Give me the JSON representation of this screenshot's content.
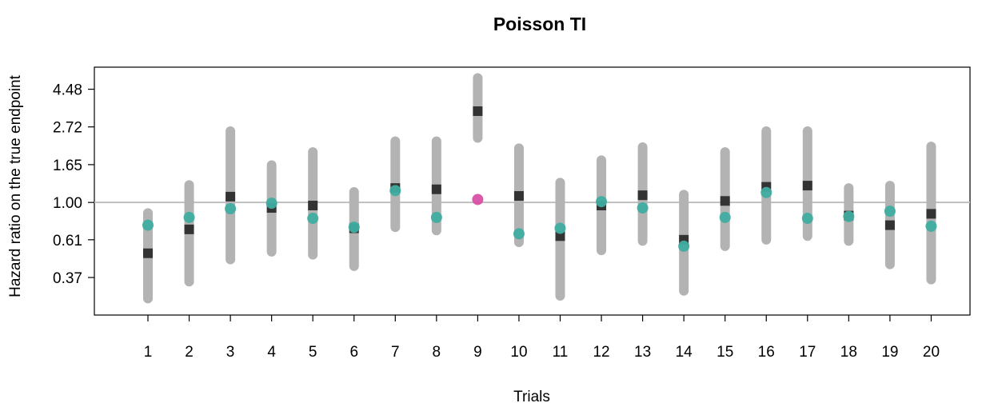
{
  "chart_data": {
    "type": "scatter",
    "title": "Poisson TI",
    "xlabel": "Trials",
    "ylabel": "Hazard ratio on the true endpoint",
    "y_scale": "log",
    "ylim": [
      0.225,
      6.0
    ],
    "y_ticks": [
      "0.37",
      "0.61",
      "1.00",
      "1.65",
      "2.72",
      "4.48"
    ],
    "y_tick_values": [
      0.37,
      0.61,
      1.0,
      1.65,
      2.72,
      4.48
    ],
    "reference_line": 1.0,
    "grid": false,
    "categories": [
      "1",
      "2",
      "3",
      "4",
      "5",
      "6",
      "7",
      "8",
      "9",
      "10",
      "11",
      "12",
      "13",
      "14",
      "15",
      "16",
      "17",
      "18",
      "19",
      "20"
    ],
    "series": [
      {
        "role": "interval",
        "color": "#b3b3b3",
        "lower": [
          0.28,
          0.35,
          0.47,
          0.52,
          0.5,
          0.43,
          0.72,
          0.69,
          2.35,
          0.59,
          0.29,
          0.53,
          0.6,
          0.31,
          0.56,
          0.61,
          0.64,
          0.6,
          0.44,
          0.36
        ],
        "upper": [
          0.87,
          1.26,
          2.57,
          1.64,
          1.95,
          1.15,
          2.25,
          2.25,
          5.2,
          2.05,
          1.3,
          1.75,
          2.08,
          1.11,
          1.95,
          2.57,
          2.57,
          1.21,
          1.25,
          2.1
        ]
      },
      {
        "role": "point-estimate",
        "marker": "square",
        "color": "#333333",
        "values": [
          0.51,
          0.7,
          1.08,
          0.93,
          0.96,
          0.71,
          1.21,
          1.19,
          3.35,
          1.09,
          0.64,
          0.96,
          1.1,
          0.61,
          1.02,
          1.23,
          1.25,
          0.84,
          0.74,
          0.86
        ]
      },
      {
        "role": "predicted",
        "marker": "circle",
        "color": "#3fada0",
        "values": [
          0.74,
          0.82,
          0.92,
          0.99,
          0.81,
          0.72,
          1.17,
          0.82,
          1.04,
          0.66,
          0.71,
          1.01,
          0.93,
          0.56,
          0.82,
          1.14,
          0.81,
          0.83,
          0.89,
          0.73
        ]
      }
    ],
    "highlight": {
      "trial": "9",
      "color": "#d94fa6"
    }
  }
}
